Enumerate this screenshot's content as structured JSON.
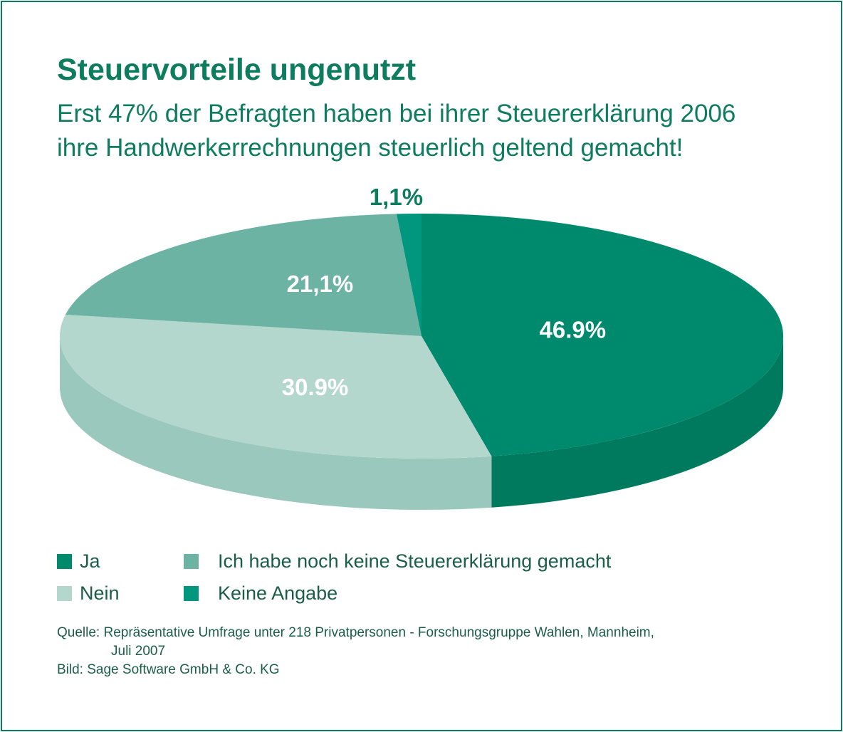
{
  "title": "Steuervorteile ungenutzt",
  "subtitle_lines": [
    "Erst 47% der Befragten haben bei ihrer Steuererklärung 2006",
    "ihre Handwerkerrechnungen steuerlich geltend gemacht!"
  ],
  "chart_data": {
    "type": "pie",
    "style": "3d",
    "title": "Steuervorteile ungenutzt",
    "slices": [
      {
        "label": "Ja",
        "value": 46.9,
        "value_label": "46.9%",
        "color": "#008a6d",
        "side_color": "#007a5f",
        "text_color": "#ffffff"
      },
      {
        "label": "Nein",
        "value": 30.9,
        "value_label": "30.9%",
        "color": "#b3d6cd",
        "side_color": "#9bc8bc",
        "text_color": "#ffffff"
      },
      {
        "label": "Ich habe noch keine Steuererklärung gemacht",
        "value": 21.1,
        "value_label": "21,1%",
        "color": "#6cb3a4",
        "side_color": "#5aa192",
        "text_color": "#ffffff"
      },
      {
        "label": "Keine Angabe",
        "value": 1.1,
        "value_label": "1,1%",
        "color": "#00977e",
        "side_color": "#00856f",
        "text_color": "#0d7c5f"
      }
    ],
    "legend_placement": "bottom"
  },
  "legend": [
    {
      "label": "Ja",
      "color": "#008a6d"
    },
    {
      "label": "Ich habe noch keine Steuererklärung gemacht",
      "color": "#6cb3a4"
    },
    {
      "label": "Nein",
      "color": "#b3d6cd"
    },
    {
      "label": "Keine Angabe",
      "color": "#00977e"
    }
  ],
  "source": {
    "line1": "Quelle: Repräsentative Umfrage unter 218 Privatpersonen - Forschungsgruppe Wahlen, Mannheim,",
    "line2": "Juli 2007",
    "line3": "Bild: Sage Software GmbH & Co. KG"
  },
  "colors": {
    "accent": "#0d7c5f",
    "text": "#1b5e48"
  }
}
